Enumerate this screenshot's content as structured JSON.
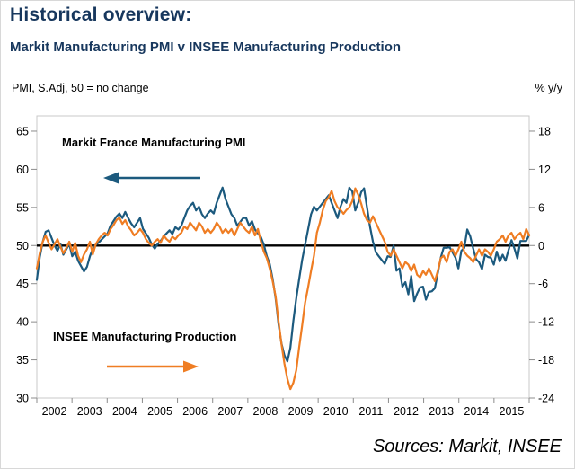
{
  "header": {
    "title": "Historical overview:",
    "subtitle": "Markit Manufacturing PMI v INSEE Manufacturing Production"
  },
  "footer": {
    "sources": "Sources: Markit, INSEE"
  },
  "chart_data": {
    "type": "line",
    "title": "Markit Manufacturing PMI v INSEE Manufacturing Production",
    "x": {
      "start": "2002-01",
      "end": "2015-12",
      "interval": "monthly",
      "year_labels": [
        "2002",
        "2003",
        "2004",
        "2005",
        "2006",
        "2007",
        "2008",
        "2009",
        "2010",
        "2011",
        "2012",
        "2013",
        "2014",
        "2015"
      ]
    },
    "left_axis": {
      "caption": "PMI, S.Adj, 50 = no change",
      "min": 30,
      "max": 67,
      "ticks": [
        65,
        60,
        55,
        50,
        45,
        40,
        35,
        30
      ]
    },
    "right_axis": {
      "caption": "% y/y",
      "min": -24,
      "max": 18,
      "ticks": [
        18,
        12,
        6,
        0,
        -6,
        -12,
        -18,
        -24
      ],
      "anchor_left_min": 30,
      "anchor_left_max": 65
    },
    "baseline_left_value": 50,
    "colors": {
      "pmi_line": "#1c5a7e",
      "insee_line": "#ef7d23",
      "baseline": "#000000",
      "plot_border": "#c9c9c9",
      "tick": "#8c8c8c",
      "title": "#17375d"
    },
    "series": [
      {
        "name": "Markit France Manufacturing PMI",
        "axis": "left",
        "unit": "index, 50 = no change",
        "color": "#1c5a7e",
        "values": [
          45.5,
          48.5,
          50.5,
          51.8,
          52.0,
          51.0,
          50.0,
          49.3,
          50.2,
          48.8,
          49.5,
          50.2,
          48.6,
          49.2,
          48.0,
          47.3,
          46.6,
          47.2,
          48.6,
          49.6,
          50.1,
          50.4,
          50.8,
          51.2,
          51.6,
          52.6,
          53.2,
          53.8,
          54.2,
          53.6,
          54.4,
          53.6,
          52.9,
          52.4,
          53.0,
          53.6,
          52.2,
          51.6,
          51.0,
          50.1,
          49.6,
          50.2,
          50.6,
          51.2,
          51.6,
          52.0,
          51.5,
          52.4,
          52.1,
          52.6,
          53.6,
          54.6,
          55.2,
          55.6,
          54.6,
          55.1,
          54.1,
          53.6,
          54.2,
          54.6,
          54.2,
          55.6,
          56.6,
          57.6,
          56.1,
          55.1,
          54.1,
          53.6,
          52.6,
          53.1,
          53.6,
          53.6,
          52.6,
          53.2,
          52.1,
          51.6,
          51.1,
          50.1,
          48.6,
          47.6,
          45.6,
          43.1,
          39.6,
          37.1,
          35.6,
          34.8,
          36.6,
          40.1,
          43.1,
          45.6,
          48.1,
          50.1,
          52.1,
          54.1,
          55.1,
          54.6,
          55.1,
          55.6,
          56.1,
          56.6,
          55.6,
          54.6,
          53.6,
          55.1,
          56.1,
          55.6,
          57.6,
          57.1,
          54.6,
          55.6,
          57.0,
          57.5,
          55.0,
          52.5,
          50.5,
          49.1,
          48.6,
          48.1,
          47.6,
          48.6,
          48.5,
          50.0,
          46.7,
          47.0,
          44.6,
          45.2,
          43.6,
          46.0,
          42.7,
          43.7,
          44.5,
          44.6,
          42.9,
          43.9,
          44.0,
          44.4,
          46.4,
          48.4,
          49.7,
          49.7,
          49.8,
          49.1,
          48.4,
          47.0,
          49.3,
          49.7,
          52.1,
          51.2,
          49.6,
          48.2,
          47.8,
          46.9,
          48.8,
          48.5,
          48.4,
          47.5,
          49.2,
          47.9,
          48.8,
          48.0,
          49.4,
          50.7,
          49.6,
          48.3,
          50.6,
          50.6,
          50.6,
          51.4
        ]
      },
      {
        "name": "INSEE Manufacturing Production",
        "axis": "right",
        "unit": "% y/y",
        "color": "#ef7d23",
        "values": [
          -3.6,
          -1.2,
          0.6,
          1.6,
          0.4,
          -0.6,
          0.2,
          1.0,
          -0.2,
          -1.2,
          -0.4,
          0.6,
          -1.0,
          0.4,
          -1.6,
          -2.6,
          -1.4,
          -0.6,
          0.6,
          -1.4,
          0.2,
          1.0,
          1.6,
          2.0,
          1.6,
          2.6,
          3.2,
          4.0,
          4.4,
          3.4,
          4.0,
          3.0,
          2.4,
          1.6,
          2.0,
          2.6,
          2.0,
          1.0,
          0.4,
          0.0,
          0.6,
          1.0,
          0.4,
          1.6,
          1.0,
          0.6,
          1.4,
          1.0,
          1.6,
          2.0,
          3.0,
          2.6,
          3.6,
          3.0,
          2.4,
          3.6,
          3.0,
          2.0,
          2.6,
          2.0,
          2.6,
          3.6,
          3.0,
          2.0,
          2.6,
          2.0,
          2.6,
          1.6,
          2.6,
          3.6,
          3.0,
          2.4,
          2.0,
          3.0,
          1.6,
          2.6,
          0.6,
          -1.0,
          -2.0,
          -3.6,
          -5.6,
          -8.0,
          -12.0,
          -15.6,
          -18.6,
          -21.0,
          -22.6,
          -21.6,
          -19.6,
          -16.0,
          -12.6,
          -9.0,
          -6.6,
          -4.0,
          -1.6,
          2.0,
          3.6,
          5.6,
          7.0,
          7.6,
          8.6,
          7.0,
          6.0,
          5.6,
          5.0,
          5.6,
          6.0,
          7.0,
          9.0,
          8.0,
          6.6,
          5.0,
          4.0,
          3.6,
          4.6,
          3.6,
          2.6,
          1.6,
          0.6,
          -1.0,
          -1.6,
          -0.6,
          -1.6,
          -2.6,
          -3.6,
          -2.6,
          -3.0,
          -4.0,
          -3.0,
          -4.6,
          -5.0,
          -4.0,
          -4.6,
          -3.6,
          -4.6,
          -5.6,
          -4.0,
          -2.0,
          -1.6,
          -2.6,
          -1.0,
          -0.6,
          -1.6,
          -0.6,
          0.6,
          -1.0,
          -1.6,
          -2.0,
          -2.6,
          -1.6,
          -0.6,
          -1.6,
          -0.6,
          -1.0,
          -1.6,
          -0.6,
          0.6,
          1.0,
          1.6,
          0.6,
          1.6,
          2.0,
          1.0,
          1.6,
          2.0,
          1.0,
          2.6,
          1.6
        ]
      }
    ],
    "annotations": [
      {
        "text": "Markit France Manufacturing PMI",
        "arrow": "left",
        "color": "#1c5a7e"
      },
      {
        "text": "INSEE Manufacturing Production",
        "arrow": "right",
        "color": "#ef7d23"
      }
    ],
    "legend": "annotated in-plot (no legend box)",
    "grid": false
  }
}
